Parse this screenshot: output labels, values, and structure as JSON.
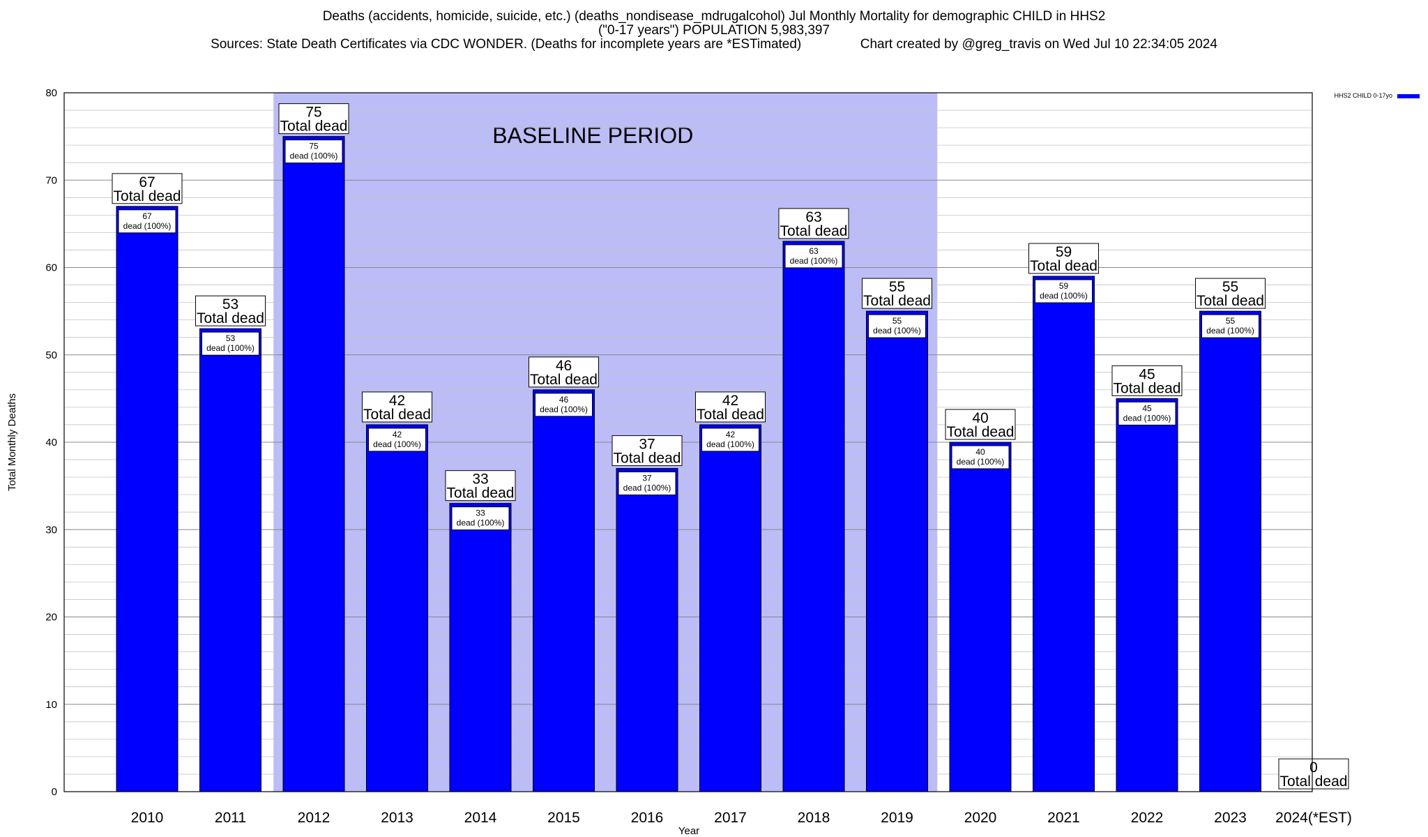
{
  "chart_data": {
    "type": "bar",
    "title_lines": [
      "Deaths (accidents, homicide, suicide, etc.) (deaths_nondisease_mdrugalcohol) Jul Monthly Mortality for demographic CHILD in HHS2",
      "(\"0-17 years\") POPULATION 5,983,397",
      "Sources: State Death Certificates via CDC WONDER. (Deaths for incomplete years are *ESTimated)                Chart created by @greg_travis on Wed Jul 10 22:34:05 2024"
    ],
    "xlabel": "Year",
    "ylabel": "Total Monthly Deaths",
    "ylim": [
      0,
      80
    ],
    "yticks": [
      0,
      10,
      20,
      30,
      40,
      50,
      60,
      70,
      80
    ],
    "grid": true,
    "legend_position": "top-right",
    "categories": [
      "2010",
      "2011",
      "2012",
      "2013",
      "2014",
      "2015",
      "2016",
      "2017",
      "2018",
      "2019",
      "2020",
      "2021",
      "2022",
      "2023",
      "2024(*EST)"
    ],
    "series": [
      {
        "name": "HHS2 CHILD 0-17yo",
        "color": "#0000ff",
        "values": [
          67,
          53,
          75,
          42,
          33,
          46,
          37,
          42,
          63,
          55,
          40,
          59,
          45,
          55,
          0
        ]
      }
    ],
    "total_label_text": "Total dead",
    "inner_label_text": "dead (100%)",
    "baseline_period": {
      "label": "BASELINE PERIOD",
      "from_category": "2012",
      "to_category": "2019",
      "color": "#bcbcf6"
    }
  }
}
